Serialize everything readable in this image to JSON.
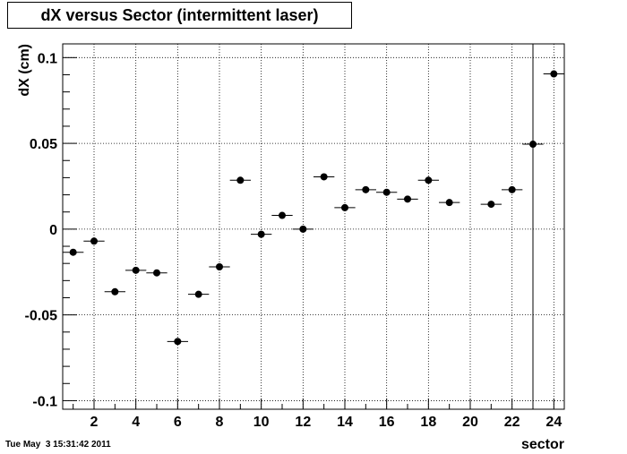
{
  "chart_data": {
    "type": "scatter",
    "title": "dX versus Sector (intermittent laser)",
    "xlabel": "sector",
    "ylabel": "dX (cm)",
    "xlim": [
      0.5,
      24.5
    ],
    "ylim": [
      -0.105,
      0.108
    ],
    "x_ticks": [
      2,
      4,
      6,
      8,
      10,
      12,
      14,
      16,
      18,
      20,
      22,
      24
    ],
    "x_tick_labels": [
      "2",
      "4",
      "6",
      "8",
      "10",
      "12",
      "14",
      "16",
      "18",
      "20",
      "22",
      "24"
    ],
    "y_ticks": [
      -0.1,
      -0.05,
      0,
      0.05,
      0.1
    ],
    "y_tick_labels": [
      "-0.1",
      "-0.05",
      "0",
      "0.05",
      "0.1"
    ],
    "grid": true,
    "x_error": 0.5,
    "vertical_line_x": 23,
    "points": [
      {
        "x": 1,
        "y": -0.0135
      },
      {
        "x": 2,
        "y": -0.007
      },
      {
        "x": 3,
        "y": -0.0365
      },
      {
        "x": 4,
        "y": -0.024
      },
      {
        "x": 5,
        "y": -0.0255
      },
      {
        "x": 6,
        "y": -0.0655
      },
      {
        "x": 7,
        "y": -0.038
      },
      {
        "x": 8,
        "y": -0.022
      },
      {
        "x": 9,
        "y": 0.0285
      },
      {
        "x": 10,
        "y": -0.003
      },
      {
        "x": 11,
        "y": 0.008
      },
      {
        "x": 12,
        "y": 0
      },
      {
        "x": 13,
        "y": 0.0305
      },
      {
        "x": 14,
        "y": 0.0125
      },
      {
        "x": 15,
        "y": 0.023
      },
      {
        "x": 16,
        "y": 0.0215
      },
      {
        "x": 17,
        "y": 0.0175
      },
      {
        "x": 18,
        "y": 0.0285
      },
      {
        "x": 19,
        "y": 0.0155
      },
      {
        "x": 21,
        "y": 0.0145
      },
      {
        "x": 22,
        "y": 0.023
      },
      {
        "x": 23,
        "y": 0.0495
      },
      {
        "x": 24,
        "y": 0.0905
      }
    ]
  },
  "footer": {
    "timestamp": "Tue May  3 15:31:42 2011"
  }
}
